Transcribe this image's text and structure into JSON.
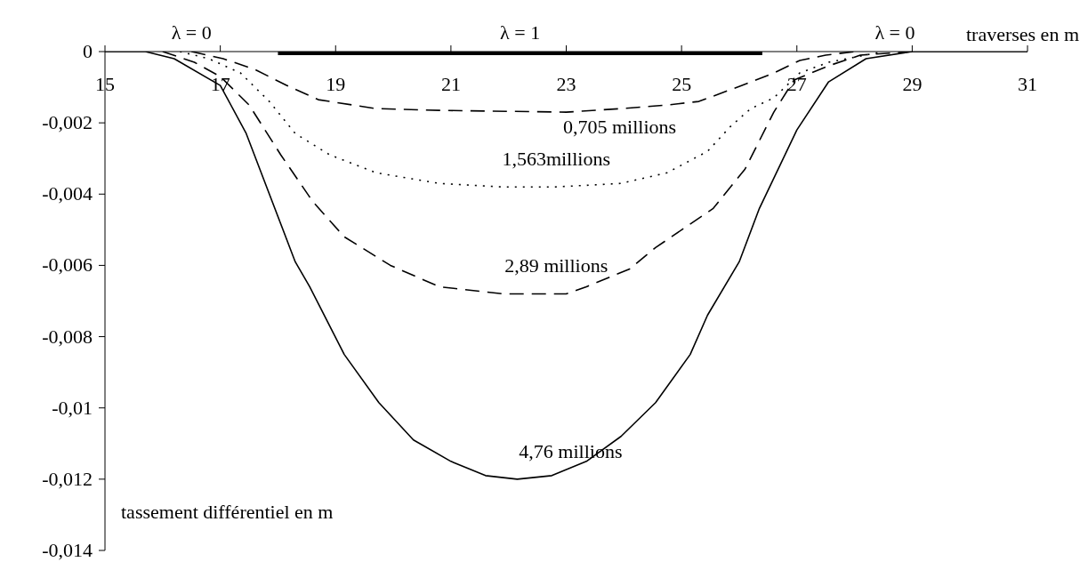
{
  "chart_data": {
    "type": "line",
    "xlabel": "traverses en m",
    "ylabel": "tassement différentiel en m",
    "xlim": [
      15,
      31
    ],
    "xticks": [
      15,
      17,
      19,
      21,
      23,
      25,
      27,
      29,
      31
    ],
    "ylim": [
      -0.014,
      0
    ],
    "yticks": [
      0,
      {
        "value": -0.002,
        "label": "-0,002"
      },
      {
        "value": -0.004,
        "label": "-0,004"
      },
      {
        "value": -0.006,
        "label": "-0,006"
      },
      {
        "value": -0.008,
        "label": "-0,008"
      },
      {
        "value": -0.01,
        "label": "-0,01"
      },
      {
        "value": -0.012,
        "label": "-0,012"
      },
      {
        "value": -0.014,
        "label": "-0,014"
      }
    ],
    "series": [
      {
        "name": "0,705 millions",
        "color": "#000000",
        "line_style": "dashed",
        "x": [
          16.5,
          17.05,
          17.6,
          18.15,
          18.7,
          19.7,
          20.8,
          23,
          23.95,
          24.75,
          25.3,
          26.05,
          26.6,
          27.05,
          27.5,
          28
        ],
        "values": [
          0,
          -0.0002,
          -0.0005,
          -0.00095,
          -0.00135,
          -0.0016,
          -0.00165,
          -0.0017,
          -0.0016,
          -0.0015,
          -0.0014,
          -0.00095,
          -0.0006,
          -0.00025,
          -0.0001,
          0
        ]
      },
      {
        "name": "1,563millions",
        "color": "#000000",
        "line_style": "dotted",
        "x": [
          16.3,
          16.8,
          17.35,
          17.85,
          18.3,
          18.9,
          19.7,
          20.8,
          21.9,
          22.8,
          23.95,
          24.75,
          25.45,
          25.85,
          26.2,
          26.6,
          27.05,
          27.55,
          28.5
        ],
        "values": [
          0,
          -0.0002,
          -0.0006,
          -0.0014,
          -0.0023,
          -0.0029,
          -0.0034,
          -0.0037,
          -0.0038,
          -0.0038,
          -0.0037,
          -0.0034,
          -0.0028,
          -0.0021,
          -0.0016,
          -0.0013,
          -0.0006,
          -0.0003,
          0
        ]
      },
      {
        "name": "2,89 millions",
        "color": "#000000",
        "line_style": "dashed",
        "x": [
          16,
          16.55,
          17,
          17.5,
          18.05,
          18.6,
          19.15,
          19.95,
          20.8,
          21.9,
          23,
          23.35,
          24.1,
          24.55,
          25.55,
          26.1,
          26.6,
          26.95,
          27.55,
          28.1,
          29
        ],
        "values": [
          0,
          -0.0003,
          -0.0007,
          -0.0015,
          -0.0029,
          -0.0042,
          -0.0052,
          -0.006,
          -0.0066,
          -0.0068,
          -0.0068,
          -0.0066,
          -0.0061,
          -0.0055,
          -0.0044,
          -0.0033,
          -0.0017,
          -0.0008,
          -0.0004,
          -0.0001,
          0
        ]
      },
      {
        "name": "4,76 millions",
        "color": "#000000",
        "line_style": "solid",
        "x": [
          15,
          15.7,
          16.2,
          17,
          17.45,
          18.3,
          18.55,
          19.15,
          19.75,
          20.35,
          21,
          21.6,
          22.15,
          22.75,
          23.35,
          23.95,
          24.55,
          25.15,
          25.45,
          26,
          26.35,
          27,
          27.55,
          28.2,
          29,
          29.9,
          31
        ],
        "values": [
          0,
          0,
          -0.0002,
          -0.00095,
          -0.0023,
          -0.0059,
          -0.0066,
          -0.0085,
          -0.00985,
          -0.0109,
          -0.0115,
          -0.0119,
          -0.012,
          -0.0119,
          -0.0115,
          -0.0108,
          -0.00985,
          -0.0085,
          -0.0074,
          -0.0059,
          -0.0044,
          -0.0022,
          -0.00085,
          -0.0002,
          0,
          0,
          0
        ]
      },
      {
        "color": "#000000",
        "line_style": "solid",
        "x": [
          18,
          26.4
        ],
        "values": [
          0,
          0
        ]
      }
    ],
    "annotations": [
      "λ = 0",
      "λ = 1",
      "λ = 0"
    ]
  }
}
